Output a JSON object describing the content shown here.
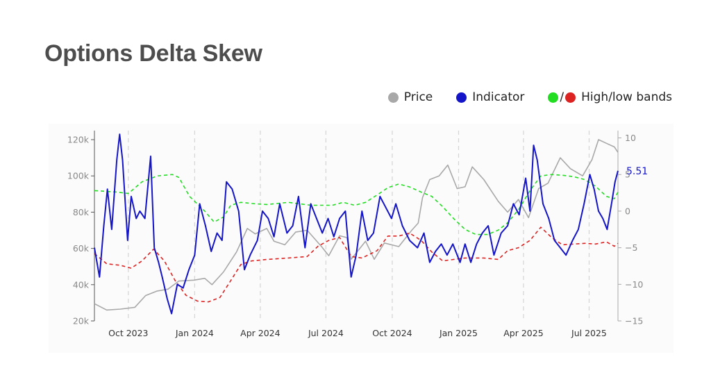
{
  "title": "Options Delta Skew",
  "legend": {
    "price": "Price",
    "indicator": "Indicator",
    "bands_sep": "/",
    "bands": "High/low bands"
  },
  "colors": {
    "price": "#a8a8a8",
    "indicator": "#1414c8",
    "band_high": "#22dd22",
    "band_low": "#dd2222",
    "title": "#4d4d4d"
  },
  "chart_data": {
    "type": "line",
    "title": "Options Delta Skew",
    "x_ticks": [
      "Oct 2023",
      "Jan 2024",
      "Apr 2024",
      "Jul 2024",
      "Oct 2024",
      "Jan 2025",
      "Apr 2025",
      "Jul 2025"
    ],
    "x_range": [
      "2023-08-15",
      "2025-08-10"
    ],
    "y_left": {
      "label": "Price",
      "range": [
        20000,
        125000
      ],
      "ticks": [
        "20k",
        "40k",
        "60k",
        "80k",
        "100k",
        "120k"
      ]
    },
    "y_right": {
      "label": "Indicator",
      "range": [
        -15,
        11
      ],
      "ticks": [
        "−15",
        "−10",
        "−5",
        "0",
        "5",
        "10"
      ]
    },
    "grid": "vertical dashed at month ticks",
    "legend_position": "top-right",
    "last_value_label": "5.51",
    "series": [
      {
        "name": "Price",
        "axis": "left",
        "color": "#a8a8a8",
        "points": [
          [
            "2023-08-15",
            29500
          ],
          [
            "2023-09-01",
            26000
          ],
          [
            "2023-09-20",
            26500
          ],
          [
            "2023-10-10",
            27500
          ],
          [
            "2023-10-25",
            34000
          ],
          [
            "2023-11-10",
            36500
          ],
          [
            "2023-11-25",
            37500
          ],
          [
            "2023-12-10",
            42000
          ],
          [
            "2023-12-31",
            42500
          ],
          [
            "2024-01-15",
            43500
          ],
          [
            "2024-01-25",
            40000
          ],
          [
            "2024-02-10",
            47000
          ],
          [
            "2024-02-28",
            58000
          ],
          [
            "2024-03-14",
            71000
          ],
          [
            "2024-03-25",
            68000
          ],
          [
            "2024-04-10",
            71000
          ],
          [
            "2024-04-20",
            64000
          ],
          [
            "2024-05-05",
            62000
          ],
          [
            "2024-05-20",
            69000
          ],
          [
            "2024-06-05",
            70000
          ],
          [
            "2024-06-25",
            61000
          ],
          [
            "2024-07-05",
            56000
          ],
          [
            "2024-07-20",
            67000
          ],
          [
            "2024-07-30",
            66000
          ],
          [
            "2024-08-05",
            54000
          ],
          [
            "2024-08-25",
            64000
          ],
          [
            "2024-09-06",
            54000
          ],
          [
            "2024-09-20",
            63000
          ],
          [
            "2024-10-10",
            61000
          ],
          [
            "2024-10-28",
            70000
          ],
          [
            "2024-11-06",
            74000
          ],
          [
            "2024-11-12",
            88000
          ],
          [
            "2024-11-22",
            98000
          ],
          [
            "2024-12-05",
            100000
          ],
          [
            "2024-12-17",
            106000
          ],
          [
            "2024-12-30",
            93000
          ],
          [
            "2025-01-10",
            94000
          ],
          [
            "2025-01-20",
            105000
          ],
          [
            "2025-02-05",
            98000
          ],
          [
            "2025-02-25",
            86000
          ],
          [
            "2025-03-10",
            80000
          ],
          [
            "2025-03-25",
            87000
          ],
          [
            "2025-04-08",
            77000
          ],
          [
            "2025-04-22",
            93000
          ],
          [
            "2025-05-05",
            96000
          ],
          [
            "2025-05-22",
            110000
          ],
          [
            "2025-06-05",
            104000
          ],
          [
            "2025-06-22",
            100000
          ],
          [
            "2025-07-05",
            109000
          ],
          [
            "2025-07-14",
            120000
          ],
          [
            "2025-07-25",
            118000
          ],
          [
            "2025-08-05",
            116000
          ],
          [
            "2025-08-10",
            113000
          ]
        ]
      },
      {
        "name": "High band",
        "axis": "right",
        "color": "#22dd22",
        "dash": true,
        "points": [
          [
            "2023-08-15",
            2.8
          ],
          [
            "2023-09-15",
            2.6
          ],
          [
            "2023-10-01",
            2.4
          ],
          [
            "2023-10-20",
            4.0
          ],
          [
            "2023-11-10",
            4.8
          ],
          [
            "2023-12-01",
            5.0
          ],
          [
            "2023-12-10",
            4.6
          ],
          [
            "2023-12-25",
            2.0
          ],
          [
            "2024-01-15",
            0.0
          ],
          [
            "2024-01-28",
            -1.5
          ],
          [
            "2024-02-10",
            -0.8
          ],
          [
            "2024-02-20",
            0.8
          ],
          [
            "2024-03-05",
            1.2
          ],
          [
            "2024-03-25",
            1.0
          ],
          [
            "2024-04-10",
            0.9
          ],
          [
            "2024-05-10",
            1.2
          ],
          [
            "2024-06-10",
            0.8
          ],
          [
            "2024-07-10",
            0.8
          ],
          [
            "2024-07-25",
            1.2
          ],
          [
            "2024-08-10",
            0.8
          ],
          [
            "2024-08-25",
            1.2
          ],
          [
            "2024-09-10",
            2.2
          ],
          [
            "2024-09-25",
            3.2
          ],
          [
            "2024-10-10",
            3.7
          ],
          [
            "2024-10-25",
            3.3
          ],
          [
            "2024-11-10",
            2.6
          ],
          [
            "2024-11-25",
            2.0
          ],
          [
            "2024-12-10",
            0.6
          ],
          [
            "2024-12-25",
            -1.0
          ],
          [
            "2025-01-10",
            -2.5
          ],
          [
            "2025-01-25",
            -3.2
          ],
          [
            "2025-02-10",
            -3.2
          ],
          [
            "2025-02-25",
            -2.6
          ],
          [
            "2025-03-10",
            -1.6
          ],
          [
            "2025-03-25",
            0.2
          ],
          [
            "2025-04-10",
            2.8
          ],
          [
            "2025-04-25",
            4.8
          ],
          [
            "2025-05-10",
            5.0
          ],
          [
            "2025-05-25",
            4.9
          ],
          [
            "2025-06-10",
            4.7
          ],
          [
            "2025-06-25",
            4.3
          ],
          [
            "2025-07-10",
            3.4
          ],
          [
            "2025-07-25",
            2.0
          ],
          [
            "2025-08-05",
            1.7
          ],
          [
            "2025-08-10",
            2.6
          ]
        ]
      },
      {
        "name": "Low band",
        "axis": "right",
        "color": "#dd2222",
        "dash": true,
        "points": [
          [
            "2023-08-15",
            -5.8
          ],
          [
            "2023-09-01",
            -7.2
          ],
          [
            "2023-09-20",
            -7.4
          ],
          [
            "2023-10-05",
            -7.8
          ],
          [
            "2023-10-20",
            -6.8
          ],
          [
            "2023-11-05",
            -5.2
          ],
          [
            "2023-11-20",
            -6.8
          ],
          [
            "2023-12-05",
            -9.5
          ],
          [
            "2023-12-20",
            -11.5
          ],
          [
            "2024-01-05",
            -12.3
          ],
          [
            "2024-01-20",
            -12.4
          ],
          [
            "2024-02-05",
            -11.8
          ],
          [
            "2024-02-20",
            -9.5
          ],
          [
            "2024-03-05",
            -7.3
          ],
          [
            "2024-03-20",
            -6.8
          ],
          [
            "2024-04-10",
            -6.6
          ],
          [
            "2024-05-10",
            -6.4
          ],
          [
            "2024-06-05",
            -6.2
          ],
          [
            "2024-06-20",
            -4.8
          ],
          [
            "2024-07-05",
            -4.0
          ],
          [
            "2024-07-20",
            -3.6
          ],
          [
            "2024-08-05",
            -6.2
          ],
          [
            "2024-08-20",
            -6.4
          ],
          [
            "2024-09-10",
            -5.4
          ],
          [
            "2024-09-25",
            -3.4
          ],
          [
            "2024-10-10",
            -3.4
          ],
          [
            "2024-10-25",
            -3.0
          ],
          [
            "2024-11-10",
            -4.0
          ],
          [
            "2024-11-25",
            -5.6
          ],
          [
            "2024-12-10",
            -6.8
          ],
          [
            "2024-12-25",
            -6.6
          ],
          [
            "2025-01-10",
            -6.4
          ],
          [
            "2025-02-05",
            -6.4
          ],
          [
            "2025-02-25",
            -6.6
          ],
          [
            "2025-03-10",
            -5.4
          ],
          [
            "2025-03-25",
            -5.0
          ],
          [
            "2025-04-10",
            -4.0
          ],
          [
            "2025-04-25",
            -2.2
          ],
          [
            "2025-05-10",
            -3.6
          ],
          [
            "2025-05-25",
            -4.6
          ],
          [
            "2025-06-10",
            -4.5
          ],
          [
            "2025-06-25",
            -4.4
          ],
          [
            "2025-07-10",
            -4.5
          ],
          [
            "2025-07-25",
            -4.2
          ],
          [
            "2025-08-05",
            -4.8
          ],
          [
            "2025-08-10",
            -4.4
          ]
        ]
      },
      {
        "name": "Indicator",
        "axis": "right",
        "color": "#1414c8",
        "points": [
          [
            "2023-08-15",
            -5.0
          ],
          [
            "2023-08-22",
            -9.0
          ],
          [
            "2023-08-28",
            -2.0
          ],
          [
            "2023-09-02",
            3.0
          ],
          [
            "2023-09-08",
            -2.5
          ],
          [
            "2023-09-15",
            7.0
          ],
          [
            "2023-09-19",
            10.5
          ],
          [
            "2023-09-23",
            7.0
          ],
          [
            "2023-09-30",
            -4.0
          ],
          [
            "2023-10-05",
            2.0
          ],
          [
            "2023-10-12",
            -1.0
          ],
          [
            "2023-10-17",
            0.0
          ],
          [
            "2023-10-24",
            -1.0
          ],
          [
            "2023-11-01",
            7.5
          ],
          [
            "2023-11-06",
            -5.0
          ],
          [
            "2023-11-12",
            -7.0
          ],
          [
            "2023-11-17",
            -9.0
          ],
          [
            "2023-11-24",
            -12.0
          ],
          [
            "2023-11-30",
            -14.0
          ],
          [
            "2023-12-08",
            -10.0
          ],
          [
            "2023-12-16",
            -10.5
          ],
          [
            "2023-12-24",
            -8.0
          ],
          [
            "2024-01-01",
            -6.0
          ],
          [
            "2024-01-08",
            1.0
          ],
          [
            "2024-01-16",
            -2.0
          ],
          [
            "2024-01-24",
            -5.5
          ],
          [
            "2024-02-01",
            -3.0
          ],
          [
            "2024-02-08",
            -4.0
          ],
          [
            "2024-02-14",
            4.0
          ],
          [
            "2024-02-22",
            3.0
          ],
          [
            "2024-03-02",
            0.0
          ],
          [
            "2024-03-10",
            -8.0
          ],
          [
            "2024-03-18",
            -6.0
          ],
          [
            "2024-03-28",
            -4.0
          ],
          [
            "2024-04-04",
            0.0
          ],
          [
            "2024-04-12",
            -1.0
          ],
          [
            "2024-04-20",
            -3.5
          ],
          [
            "2024-04-28",
            1.0
          ],
          [
            "2024-05-08",
            -3.0
          ],
          [
            "2024-05-16",
            -2.0
          ],
          [
            "2024-05-24",
            2.0
          ],
          [
            "2024-06-02",
            -5.0
          ],
          [
            "2024-06-10",
            1.0
          ],
          [
            "2024-06-18",
            -1.0
          ],
          [
            "2024-06-26",
            -3.0
          ],
          [
            "2024-07-04",
            -1.0
          ],
          [
            "2024-07-12",
            -3.5
          ],
          [
            "2024-07-20",
            -1.0
          ],
          [
            "2024-07-28",
            0.0
          ],
          [
            "2024-08-05",
            -9.0
          ],
          [
            "2024-08-12",
            -6.0
          ],
          [
            "2024-08-20",
            0.0
          ],
          [
            "2024-08-28",
            -4.0
          ],
          [
            "2024-09-05",
            -3.0
          ],
          [
            "2024-09-14",
            2.0
          ],
          [
            "2024-09-22",
            0.5
          ],
          [
            "2024-09-30",
            -1.0
          ],
          [
            "2024-10-06",
            1.0
          ],
          [
            "2024-10-15",
            -2.0
          ],
          [
            "2024-10-25",
            -4.0
          ],
          [
            "2024-11-05",
            -5.0
          ],
          [
            "2024-11-14",
            -3.0
          ],
          [
            "2024-11-22",
            -7.0
          ],
          [
            "2024-11-30",
            -5.5
          ],
          [
            "2024-12-08",
            -4.5
          ],
          [
            "2024-12-16",
            -6.0
          ],
          [
            "2024-12-24",
            -4.5
          ],
          [
            "2025-01-03",
            -7.0
          ],
          [
            "2025-01-10",
            -4.5
          ],
          [
            "2025-01-18",
            -7.0
          ],
          [
            "2025-01-26",
            -4.5
          ],
          [
            "2025-02-03",
            -3.0
          ],
          [
            "2025-02-11",
            -2.0
          ],
          [
            "2025-02-19",
            -6.0
          ],
          [
            "2025-03-01",
            -3.0
          ],
          [
            "2025-03-10",
            -2.0
          ],
          [
            "2025-03-18",
            1.0
          ],
          [
            "2025-03-26",
            -0.5
          ],
          [
            "2025-04-04",
            4.5
          ],
          [
            "2025-04-10",
            0.0
          ],
          [
            "2025-04-15",
            9.0
          ],
          [
            "2025-04-20",
            7.0
          ],
          [
            "2025-04-28",
            1.0
          ],
          [
            "2025-05-06",
            -1.0
          ],
          [
            "2025-05-14",
            -4.0
          ],
          [
            "2025-05-22",
            -5.0
          ],
          [
            "2025-05-30",
            -6.0
          ],
          [
            "2025-06-08",
            -4.0
          ],
          [
            "2025-06-16",
            -2.5
          ],
          [
            "2025-06-24",
            1.0
          ],
          [
            "2025-07-02",
            5.0
          ],
          [
            "2025-07-08",
            3.0
          ],
          [
            "2025-07-14",
            0.0
          ],
          [
            "2025-07-20",
            -1.0
          ],
          [
            "2025-07-26",
            -2.5
          ],
          [
            "2025-08-01",
            1.0
          ],
          [
            "2025-08-06",
            4.0
          ],
          [
            "2025-08-10",
            5.51
          ]
        ]
      }
    ]
  }
}
